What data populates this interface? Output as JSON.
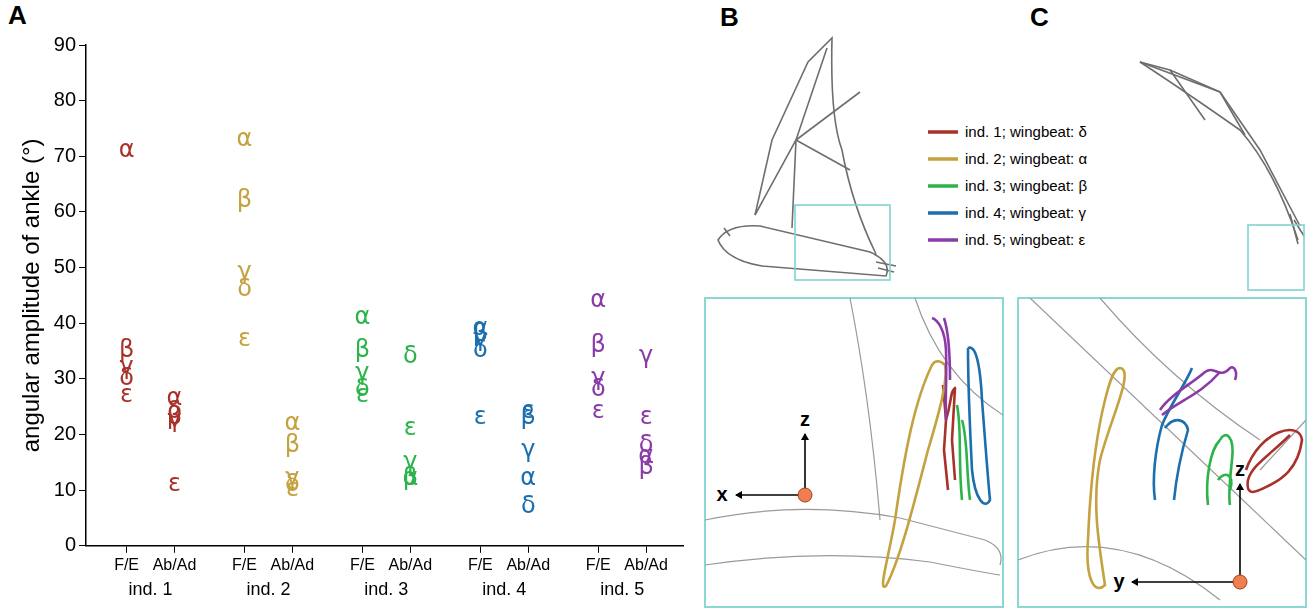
{
  "chart_data": {
    "type": "scatter",
    "panel_label": "A",
    "y_label": "angular amplitude of ankle (°)",
    "categories": [
      "F/E",
      "Ab/Ad"
    ],
    "marker": "letter",
    "marker_labels": [
      "α",
      "β",
      "γ",
      "δ",
      "ε"
    ],
    "series": [
      {
        "name": "ind. 1",
        "color": "#a8322b",
        "values": [
          [
            71,
            35,
            32,
            30,
            27
          ],
          [
            26.5,
            23,
            22.5,
            24,
            11
          ]
        ]
      },
      {
        "name": "ind. 2",
        "color": "#c4a23f",
        "values": [
          [
            73,
            62,
            49,
            46,
            37
          ],
          [
            22,
            18,
            12,
            11,
            10
          ]
        ]
      },
      {
        "name": "ind. 3",
        "color": "#2cb34a",
        "values": [
          [
            41,
            35,
            31,
            28,
            27
          ],
          [
            12,
            12,
            15,
            34,
            21
          ]
        ]
      },
      {
        "name": "ind. 4",
        "color": "#1b6fae",
        "values": [
          [
            39,
            38,
            37,
            35,
            23
          ],
          [
            12,
            23,
            17,
            7,
            24
          ]
        ]
      },
      {
        "name": "ind. 5",
        "color": "#8b3aa8",
        "values": [
          [
            44,
            36,
            30,
            28,
            24
          ],
          [
            16,
            14,
            34,
            18,
            23
          ]
        ]
      }
    ],
    "ylim": [
      0,
      90
    ],
    "yticks": [
      0,
      10,
      20,
      30,
      40,
      50,
      60,
      70,
      80,
      90
    ],
    "grid": false
  },
  "diagram": {
    "panels": [
      {
        "panel_label": "B",
        "horizontal_axis": "x",
        "vertical_axis": "z"
      },
      {
        "panel_label": "C",
        "horizontal_axis": "y",
        "vertical_axis": "z"
      }
    ],
    "legend": [
      {
        "label": "ind. 1; wingbeat: δ",
        "color": "#a8322b"
      },
      {
        "label": "ind. 2; wingbeat: α",
        "color": "#c4a23f"
      },
      {
        "label": "ind. 3; wingbeat: β",
        "color": "#2cb34a"
      },
      {
        "label": "ind. 4; wingbeat: γ",
        "color": "#1b6fae"
      },
      {
        "label": "ind. 5; wingbeat: ε",
        "color": "#8b3aa8"
      }
    ]
  }
}
